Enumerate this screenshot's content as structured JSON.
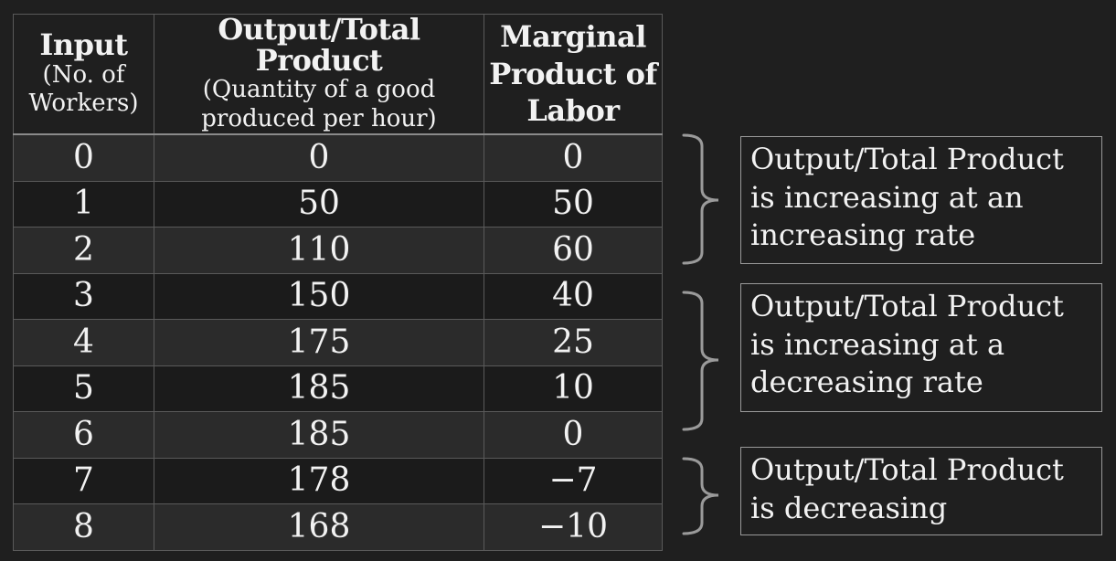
{
  "table": {
    "headers": [
      {
        "main": "Input",
        "sub_lines": [
          "(No. of",
          "Workers)"
        ]
      },
      {
        "main": "Output/Total Product",
        "sub_lines": [
          "(Quantity of a good",
          "produced per hour)"
        ]
      },
      {
        "main_lines": [
          "Marginal",
          "Product of",
          "Labor"
        ]
      }
    ],
    "rows": [
      [
        "0",
        "0",
        "0"
      ],
      [
        "1",
        "50",
        "50"
      ],
      [
        "2",
        "110",
        "60"
      ],
      [
        "3",
        "150",
        "40"
      ],
      [
        "4",
        "175",
        "25"
      ],
      [
        "5",
        "185",
        "10"
      ],
      [
        "6",
        "185",
        "0"
      ],
      [
        "7",
        "178",
        "−7"
      ],
      [
        "8",
        "168",
        "−10"
      ]
    ]
  },
  "notes": [
    {
      "lines": [
        "Output/Total Product",
        "is increasing at an",
        "increasing rate"
      ]
    },
    {
      "lines": [
        "Output/Total Product",
        "is increasing at a",
        "decreasing rate"
      ]
    },
    {
      "lines": [
        "Output/Total Product",
        "is decreasing"
      ]
    }
  ],
  "colors": {
    "background": "#1f1f1f",
    "text": "#f2f2f2",
    "row_light": "#2b2b2b",
    "row_dark": "#1b1b1b",
    "bracket": "#9a9a9a"
  }
}
